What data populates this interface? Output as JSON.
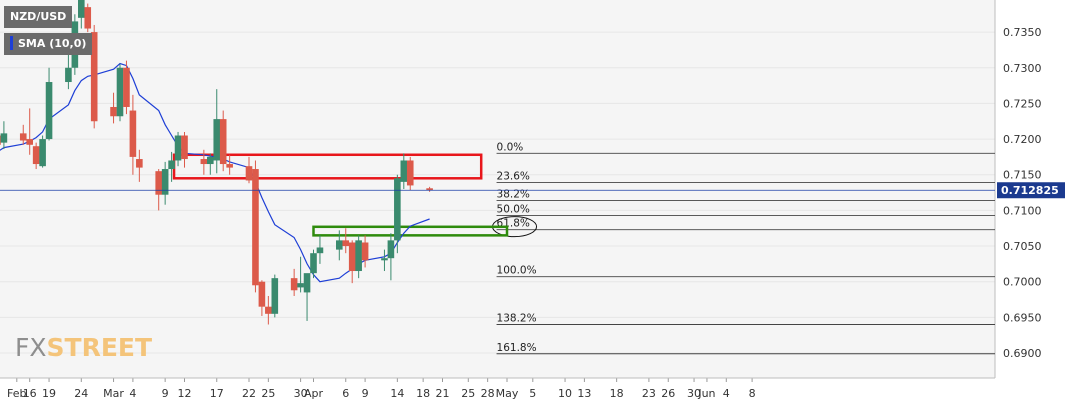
{
  "legend": {
    "symbol": "NZD/USD",
    "indicator": "SMA (10,0)",
    "indicator_color": "#1e3fd6"
  },
  "watermark": {
    "fx": "FX",
    "street": "STREET"
  },
  "chart_data": {
    "type": "candlestick",
    "y_ticks": [
      "0.7350",
      "0.7300",
      "0.7250",
      "0.7200",
      "0.7150",
      "0.7100",
      "0.7050",
      "0.7000",
      "0.6950",
      "0.6900"
    ],
    "ylim": [
      0.6865,
      0.7395
    ],
    "x_ticks": [
      "Feb",
      "16",
      "19",
      "24",
      "Mar",
      "4",
      "9",
      "12",
      "17",
      "22",
      "25",
      "30",
      "Apr",
      "6",
      "9",
      "14",
      "18",
      "21",
      "25",
      "28",
      "May",
      "5",
      "10",
      "13",
      "18",
      "23",
      "26",
      "30",
      "Jun",
      "4",
      "8"
    ],
    "current_price": "0.712825",
    "up_color": "#3a8a6e",
    "down_color": "#dc5a4a",
    "candles": [
      {
        "date": "Feb 11",
        "o": 0.7205,
        "h": 0.7228,
        "l": 0.7183,
        "c": 0.7192
      },
      {
        "date": "Feb 12",
        "o": 0.7195,
        "h": 0.7225,
        "l": 0.7186,
        "c": 0.7208
      },
      {
        "date": "Feb 15",
        "o": 0.7208,
        "h": 0.722,
        "l": 0.7192,
        "c": 0.7198
      },
      {
        "date": "Feb 16",
        "o": 0.72,
        "h": 0.7243,
        "l": 0.7178,
        "c": 0.7192
      },
      {
        "date": "Feb 17",
        "o": 0.719,
        "h": 0.7195,
        "l": 0.7158,
        "c": 0.7165
      },
      {
        "date": "Feb 18",
        "o": 0.7162,
        "h": 0.7205,
        "l": 0.716,
        "c": 0.72
      },
      {
        "date": "Feb 19",
        "o": 0.72,
        "h": 0.73,
        "l": 0.7198,
        "c": 0.728
      },
      {
        "date": "Feb 22",
        "o": 0.728,
        "h": 0.733,
        "l": 0.727,
        "c": 0.73
      },
      {
        "date": "Feb 23",
        "o": 0.73,
        "h": 0.7375,
        "l": 0.729,
        "c": 0.7365
      },
      {
        "date": "Feb 24",
        "o": 0.737,
        "h": 0.74,
        "l": 0.7355,
        "c": 0.7395
      },
      {
        "date": "Feb 25",
        "o": 0.7385,
        "h": 0.739,
        "l": 0.735,
        "c": 0.7355
      },
      {
        "date": "Feb 26",
        "o": 0.735,
        "h": 0.736,
        "l": 0.7215,
        "c": 0.7225
      },
      {
        "date": "Mar 1",
        "o": 0.7245,
        "h": 0.7265,
        "l": 0.7222,
        "c": 0.7232
      },
      {
        "date": "Mar 2",
        "o": 0.7232,
        "h": 0.7305,
        "l": 0.7225,
        "c": 0.73
      },
      {
        "date": "Mar 3",
        "o": 0.73,
        "h": 0.731,
        "l": 0.7235,
        "c": 0.7245
      },
      {
        "date": "Mar 4",
        "o": 0.724,
        "h": 0.7262,
        "l": 0.715,
        "c": 0.7175
      },
      {
        "date": "Mar 5",
        "o": 0.7172,
        "h": 0.7185,
        "l": 0.714,
        "c": 0.716
      },
      {
        "date": "Mar 8",
        "o": 0.7155,
        "h": 0.7158,
        "l": 0.71,
        "c": 0.7122
      },
      {
        "date": "Mar 9",
        "o": 0.7122,
        "h": 0.7168,
        "l": 0.7108,
        "c": 0.7158
      },
      {
        "date": "Mar 10",
        "o": 0.7158,
        "h": 0.7182,
        "l": 0.714,
        "c": 0.717
      },
      {
        "date": "Mar 11",
        "o": 0.717,
        "h": 0.721,
        "l": 0.7162,
        "c": 0.7205
      },
      {
        "date": "Mar 12",
        "o": 0.7205,
        "h": 0.721,
        "l": 0.716,
        "c": 0.7172
      },
      {
        "date": "Mar 15",
        "o": 0.7172,
        "h": 0.7185,
        "l": 0.715,
        "c": 0.7165
      },
      {
        "date": "Mar 16",
        "o": 0.7165,
        "h": 0.718,
        "l": 0.715,
        "c": 0.7175
      },
      {
        "date": "Mar 17",
        "o": 0.717,
        "h": 0.727,
        "l": 0.7152,
        "c": 0.7228
      },
      {
        "date": "Mar 18",
        "o": 0.7228,
        "h": 0.724,
        "l": 0.7155,
        "c": 0.7165
      },
      {
        "date": "Mar 19",
        "o": 0.7165,
        "h": 0.7178,
        "l": 0.715,
        "c": 0.716
      },
      {
        "date": "Mar 22",
        "o": 0.7162,
        "h": 0.7175,
        "l": 0.7138,
        "c": 0.7142
      },
      {
        "date": "Mar 23",
        "o": 0.7158,
        "h": 0.717,
        "l": 0.6985,
        "c": 0.6995
      },
      {
        "date": "Mar 24",
        "o": 0.7,
        "h": 0.7002,
        "l": 0.6952,
        "c": 0.6965
      },
      {
        "date": "Mar 25",
        "o": 0.6965,
        "h": 0.698,
        "l": 0.694,
        "c": 0.6955
      },
      {
        "date": "Mar 26",
        "o": 0.6955,
        "h": 0.701,
        "l": 0.695,
        "c": 0.7005
      },
      {
        "date": "Mar 29",
        "o": 0.7005,
        "h": 0.7018,
        "l": 0.698,
        "c": 0.6988
      },
      {
        "date": "Mar 30",
        "o": 0.6992,
        "h": 0.7035,
        "l": 0.6985,
        "c": 0.6998
      },
      {
        "date": "Mar 31",
        "o": 0.6985,
        "h": 0.701,
        "l": 0.6945,
        "c": 0.7012
      },
      {
        "date": "Apr 1",
        "o": 0.7012,
        "h": 0.7045,
        "l": 0.7005,
        "c": 0.704
      },
      {
        "date": "Apr 2",
        "o": 0.704,
        "h": 0.7065,
        "l": 0.7025,
        "c": 0.7048
      },
      {
        "date": "Apr 5",
        "o": 0.7045,
        "h": 0.7072,
        "l": 0.703,
        "c": 0.7058
      },
      {
        "date": "Apr 6",
        "o": 0.7058,
        "h": 0.7075,
        "l": 0.704,
        "c": 0.705
      },
      {
        "date": "Apr 7",
        "o": 0.7055,
        "h": 0.7058,
        "l": 0.6998,
        "c": 0.7015
      },
      {
        "date": "Apr 8",
        "o": 0.7015,
        "h": 0.7065,
        "l": 0.7005,
        "c": 0.7058
      },
      {
        "date": "Apr 9",
        "o": 0.7055,
        "h": 0.7065,
        "l": 0.702,
        "c": 0.703
      },
      {
        "date": "Apr 12",
        "o": 0.703,
        "h": 0.7045,
        "l": 0.7015,
        "c": 0.7033
      },
      {
        "date": "Apr 13",
        "o": 0.7033,
        "h": 0.7068,
        "l": 0.7002,
        "c": 0.7058
      },
      {
        "date": "Apr 14",
        "o": 0.7058,
        "h": 0.715,
        "l": 0.704,
        "c": 0.7145
      },
      {
        "date": "Apr 15",
        "o": 0.714,
        "h": 0.718,
        "l": 0.713,
        "c": 0.717
      },
      {
        "date": "Apr 16",
        "o": 0.717,
        "h": 0.7175,
        "l": 0.7128,
        "c": 0.7135
      },
      {
        "date": "Apr 19",
        "o": 0.7131,
        "h": 0.7133,
        "l": 0.7126,
        "c": 0.7128
      }
    ],
    "sma": [
      {
        "date": "Feb 11",
        "v": 0.7182
      },
      {
        "date": "Feb 12",
        "v": 0.7188
      },
      {
        "date": "Feb 15",
        "v": 0.7193
      },
      {
        "date": "Feb 16",
        "v": 0.7197
      },
      {
        "date": "Feb 17",
        "v": 0.7202
      },
      {
        "date": "Feb 18",
        "v": 0.721
      },
      {
        "date": "Feb 19",
        "v": 0.7228
      },
      {
        "date": "Feb 22",
        "v": 0.7248
      },
      {
        "date": "Feb 23",
        "v": 0.7268
      },
      {
        "date": "Feb 24",
        "v": 0.7282
      },
      {
        "date": "Feb 25",
        "v": 0.7288
      },
      {
        "date": "Feb 26",
        "v": 0.729
      },
      {
        "date": "Mar 1",
        "v": 0.7298
      },
      {
        "date": "Mar 2",
        "v": 0.7306
      },
      {
        "date": "Mar 3",
        "v": 0.7303
      },
      {
        "date": "Mar 4",
        "v": 0.7285
      },
      {
        "date": "Mar 5",
        "v": 0.7262
      },
      {
        "date": "Mar 8",
        "v": 0.724
      },
      {
        "date": "Mar 9",
        "v": 0.722
      },
      {
        "date": "Mar 10",
        "v": 0.7205
      },
      {
        "date": "Mar 11",
        "v": 0.719
      },
      {
        "date": "Mar 12",
        "v": 0.718
      },
      {
        "date": "Mar 15",
        "v": 0.7178
      },
      {
        "date": "Mar 16",
        "v": 0.7176
      },
      {
        "date": "Mar 17",
        "v": 0.7175
      },
      {
        "date": "Mar 18",
        "v": 0.7172
      },
      {
        "date": "Mar 19",
        "v": 0.7168
      },
      {
        "date": "Mar 22",
        "v": 0.716
      },
      {
        "date": "Mar 23",
        "v": 0.714
      },
      {
        "date": "Mar 24",
        "v": 0.7118
      },
      {
        "date": "Mar 25",
        "v": 0.7098
      },
      {
        "date": "Mar 26",
        "v": 0.708
      },
      {
        "date": "Mar 29",
        "v": 0.7062
      },
      {
        "date": "Mar 30",
        "v": 0.7045
      },
      {
        "date": "Mar 31",
        "v": 0.7025
      },
      {
        "date": "Apr 1",
        "v": 0.701
      },
      {
        "date": "Apr 2",
        "v": 0.7
      },
      {
        "date": "Apr 5",
        "v": 0.7005
      },
      {
        "date": "Apr 6",
        "v": 0.7012
      },
      {
        "date": "Apr 7",
        "v": 0.7018
      },
      {
        "date": "Apr 8",
        "v": 0.7025
      },
      {
        "date": "Apr 9",
        "v": 0.703
      },
      {
        "date": "Apr 12",
        "v": 0.7035
      },
      {
        "date": "Apr 13",
        "v": 0.704
      },
      {
        "date": "Apr 14",
        "v": 0.7055
      },
      {
        "date": "Apr 15",
        "v": 0.7068
      },
      {
        "date": "Apr 16",
        "v": 0.7078
      },
      {
        "date": "Apr 19",
        "v": 0.7088
      }
    ],
    "fibonacci": [
      {
        "label": "0.0%",
        "price": 0.718
      },
      {
        "label": "23.6%",
        "price": 0.7139
      },
      {
        "label": "38.2%",
        "price": 0.7114
      },
      {
        "label": "50.0%",
        "price": 0.7093
      },
      {
        "label": "61.8%",
        "price": 0.7073
      },
      {
        "label": "100.0%",
        "price": 0.7007
      },
      {
        "label": "138.2%",
        "price": 0.694
      },
      {
        "label": "161.8%",
        "price": 0.6899
      }
    ],
    "resistance_zone": {
      "from_date": "Mar 11",
      "to_date": "Apr 27",
      "top": 0.7178,
      "bottom": 0.7145,
      "color": "#e8161b"
    },
    "support_zone": {
      "from_date": "Apr 1",
      "to_date": "May 1",
      "top": 0.7077,
      "bottom": 0.7065,
      "color": "#2e8b0c"
    }
  }
}
